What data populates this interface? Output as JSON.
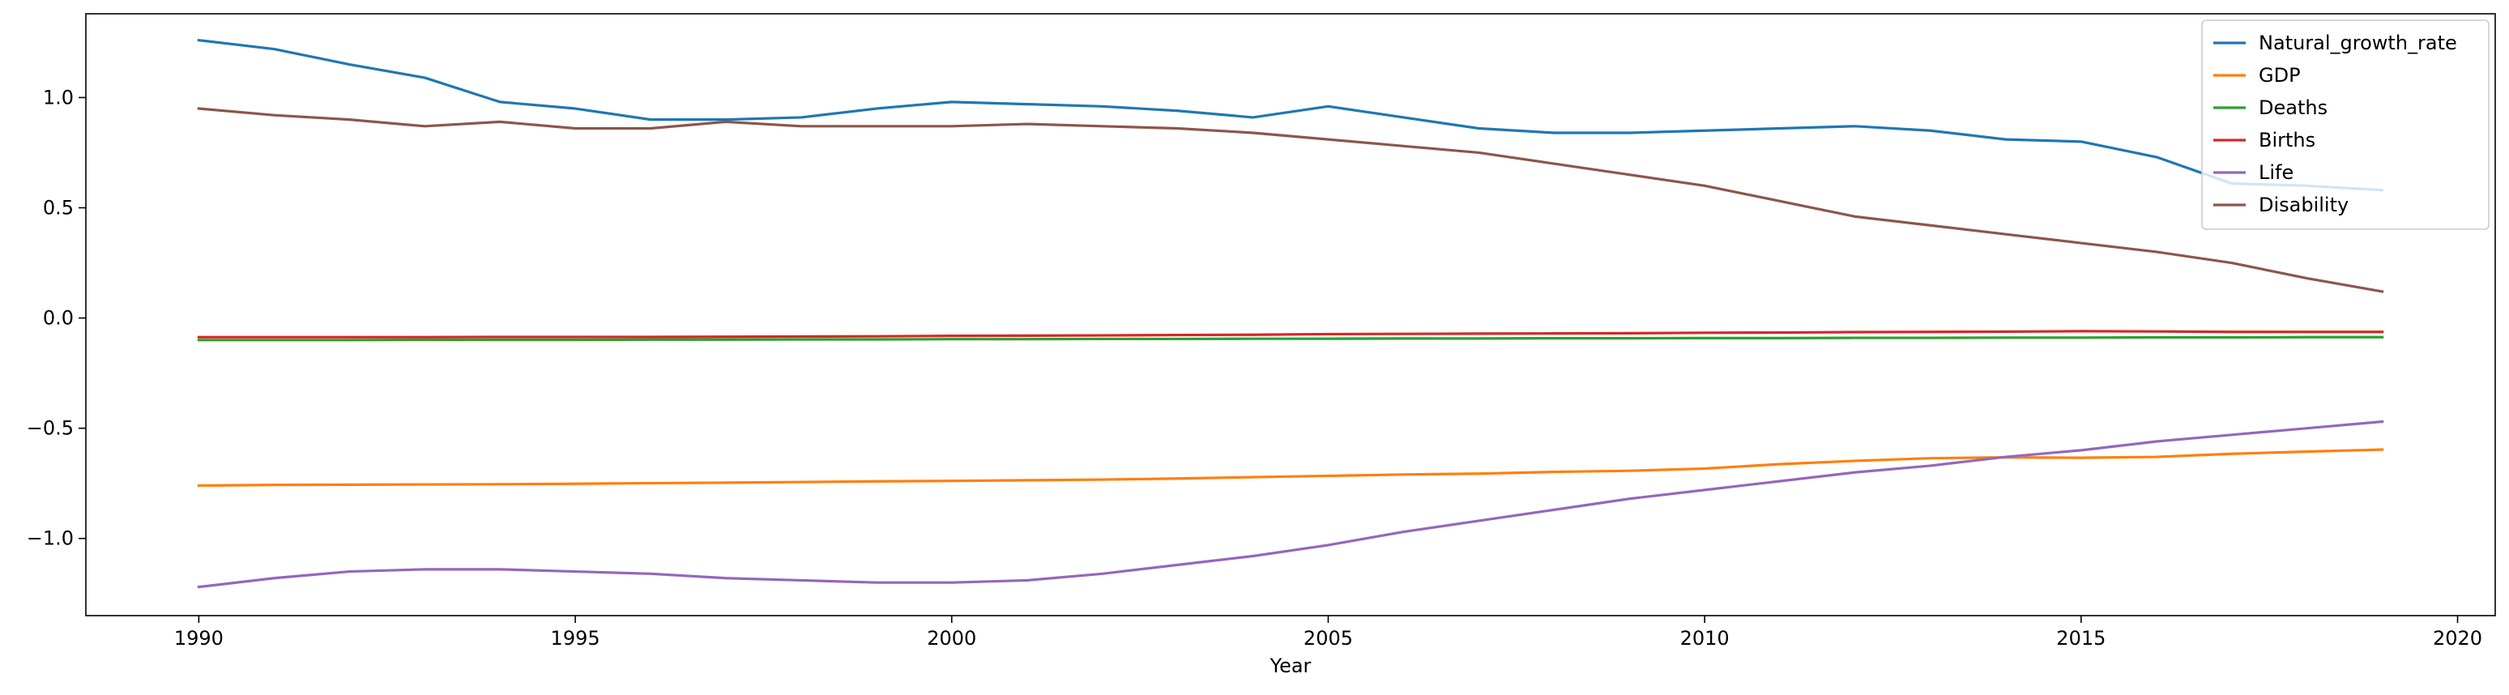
{
  "chart_data": {
    "type": "line",
    "title": "",
    "xlabel": "Year",
    "ylabel": "",
    "xlim": [
      1988.5,
      2020.5
    ],
    "ylim": [
      -1.35,
      1.38
    ],
    "x_ticks": [
      1990,
      1995,
      2000,
      2005,
      2010,
      2015,
      2020
    ],
    "x_tick_labels": [
      "1990",
      "1995",
      "2000",
      "2005",
      "2010",
      "2015",
      "2020"
    ],
    "y_ticks": [
      1.0,
      0.5,
      0.0,
      -0.5,
      -1.0
    ],
    "y_tick_labels": [
      "1.0",
      "0.5",
      "0.0",
      "−0.5",
      "−1.0"
    ],
    "grid": false,
    "legend_position": "top-right",
    "x": [
      1990,
      1991,
      1992,
      1993,
      1994,
      1995,
      1996,
      1997,
      1998,
      1999,
      2000,
      2001,
      2002,
      2003,
      2004,
      2005,
      2006,
      2007,
      2008,
      2009,
      2010,
      2011,
      2012,
      2013,
      2014,
      2015,
      2016,
      2017,
      2018,
      2019
    ],
    "series": [
      {
        "name": "Natural_growth_rate",
        "color": "#1f77b4",
        "values": [
          1.26,
          1.22,
          1.15,
          1.09,
          0.98,
          0.95,
          0.9,
          0.9,
          0.91,
          0.95,
          0.98,
          0.97,
          0.96,
          0.94,
          0.91,
          0.96,
          0.91,
          0.86,
          0.84,
          0.84,
          0.85,
          0.86,
          0.87,
          0.85,
          0.81,
          0.8,
          0.73,
          0.61,
          0.6,
          0.58
        ]
      },
      {
        "name": "GDP",
        "color": "#ff7f0e",
        "values": [
          -0.76,
          -0.757,
          -0.756,
          -0.755,
          -0.754,
          -0.752,
          -0.749,
          -0.747,
          -0.744,
          -0.741,
          -0.739,
          -0.736,
          -0.733,
          -0.728,
          -0.722,
          -0.716,
          -0.71,
          -0.706,
          -0.698,
          -0.693,
          -0.683,
          -0.663,
          -0.648,
          -0.636,
          -0.632,
          -0.634,
          -0.63,
          -0.616,
          -0.606,
          -0.597
        ]
      },
      {
        "name": "Deaths",
        "color": "#2ca02c",
        "values": [
          -0.1,
          -0.1,
          -0.1,
          -0.099,
          -0.099,
          -0.099,
          -0.098,
          -0.098,
          -0.097,
          -0.097,
          -0.096,
          -0.096,
          -0.095,
          -0.095,
          -0.094,
          -0.094,
          -0.093,
          -0.093,
          -0.092,
          -0.092,
          -0.091,
          -0.091,
          -0.09,
          -0.09,
          -0.089,
          -0.089,
          -0.088,
          -0.088,
          -0.087,
          -0.087
        ]
      },
      {
        "name": "Births",
        "color": "#d62728",
        "values": [
          -0.087,
          -0.087,
          -0.087,
          -0.087,
          -0.086,
          -0.086,
          -0.086,
          -0.085,
          -0.084,
          -0.083,
          -0.081,
          -0.08,
          -0.079,
          -0.077,
          -0.076,
          -0.073,
          -0.072,
          -0.071,
          -0.07,
          -0.069,
          -0.067,
          -0.066,
          -0.064,
          -0.063,
          -0.062,
          -0.06,
          -0.061,
          -0.063,
          -0.063,
          -0.063
        ]
      },
      {
        "name": "Life",
        "color": "#9467bd",
        "values": [
          -1.22,
          -1.18,
          -1.15,
          -1.14,
          -1.14,
          -1.15,
          -1.16,
          -1.18,
          -1.19,
          -1.2,
          -1.2,
          -1.19,
          -1.16,
          -1.12,
          -1.08,
          -1.03,
          -0.97,
          -0.92,
          -0.87,
          -0.82,
          -0.78,
          -0.74,
          -0.7,
          -0.67,
          -0.63,
          -0.6,
          -0.56,
          -0.53,
          -0.5,
          -0.47
        ]
      },
      {
        "name": "Disability",
        "color": "#8c564b",
        "values": [
          0.95,
          0.92,
          0.9,
          0.87,
          0.89,
          0.86,
          0.86,
          0.89,
          0.87,
          0.87,
          0.87,
          0.88,
          0.87,
          0.86,
          0.84,
          0.81,
          0.78,
          0.75,
          0.7,
          0.65,
          0.6,
          0.53,
          0.46,
          0.42,
          0.38,
          0.34,
          0.3,
          0.25,
          0.18,
          0.12
        ]
      }
    ]
  }
}
